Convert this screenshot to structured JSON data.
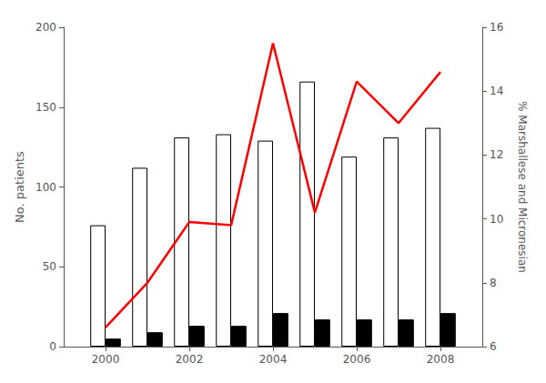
{
  "chart_data": {
    "type": "bar",
    "x": [
      2000,
      2001,
      2002,
      2003,
      2004,
      2005,
      2006,
      2007,
      2008
    ],
    "xlim": [
      1999,
      2009
    ],
    "xticks": [
      2000,
      2002,
      2004,
      2006,
      2008
    ],
    "ylabel": "No. patients",
    "ylim": [
      0,
      200
    ],
    "yticks": [
      0,
      50,
      100,
      150,
      200
    ],
    "y2label": "% Marshallese and Micronesian",
    "y2lim": [
      6,
      16
    ],
    "y2ticks": [
      6,
      8,
      10,
      12,
      14,
      16
    ],
    "grid": false,
    "series": [
      {
        "type": "bar",
        "color": "white",
        "values": [
          76,
          112,
          131,
          133,
          129,
          166,
          119,
          131,
          137
        ]
      },
      {
        "type": "bar",
        "color": "black",
        "values": [
          5,
          9,
          13,
          13,
          21,
          17,
          17,
          17,
          21
        ]
      },
      {
        "type": "line",
        "color": "red",
        "axis": "y2",
        "values": [
          6.6,
          8.0,
          9.9,
          9.8,
          15.5,
          10.2,
          14.3,
          13.0,
          14.6
        ]
      }
    ]
  }
}
